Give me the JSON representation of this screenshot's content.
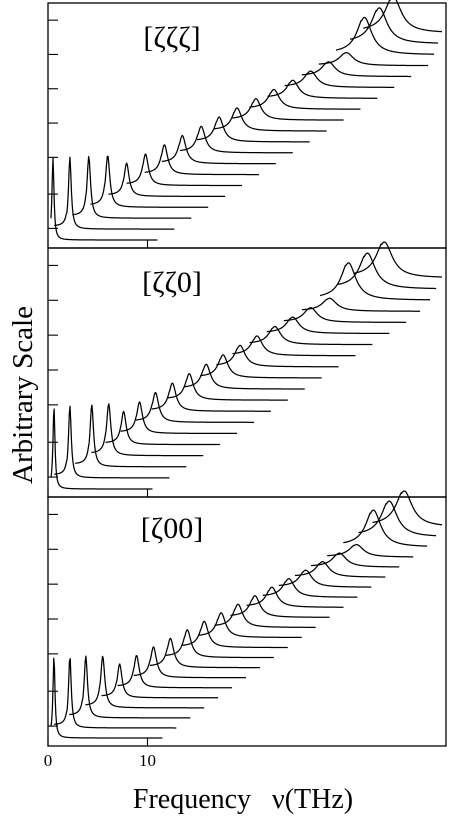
{
  "chart_data": {
    "type": "line",
    "subtype": "stacked-spectra (waterfall), 3 vertically stacked panels sharing one frequency axis",
    "xlabel": "Frequency   ν(THz)",
    "ylabel": "Arbitrary Scale",
    "x_tick_labels": [
      "0",
      "10"
    ],
    "xlim": [
      0,
      40
    ],
    "grid": false,
    "legend": "none",
    "panels": [
      {
        "label": "[ζζζ]",
        "n_traces": 20,
        "peak_frequencies": [
          0.5,
          2.2,
          4.1,
          6.0,
          7.9,
          9.8,
          11.7,
          13.5,
          15.4,
          17.2,
          19.0,
          20.9,
          22.7,
          24.6,
          26.4,
          28.2,
          30.0,
          31.8,
          33.3,
          34.7
        ],
        "trace_end_frequencies": [
          11.0,
          12.7,
          14.4,
          16.1,
          17.8,
          19.5,
          21.2,
          22.9,
          24.6,
          26.3,
          28.0,
          29.7,
          31.4,
          33.1,
          34.8,
          36.5,
          38.2,
          38.8,
          39.2,
          39.6
        ]
      },
      {
        "label": "[ζζ0]",
        "n_traces": 20,
        "peak_frequencies": [
          0.6,
          2.2,
          4.4,
          6.1,
          7.6,
          9.2,
          10.8,
          12.5,
          14.2,
          15.9,
          17.6,
          19.3,
          21.0,
          22.8,
          24.6,
          26.4,
          28.3,
          30.2,
          32.1,
          33.8
        ],
        "trace_end_frequencies": [
          10.5,
          12.2,
          13.9,
          15.6,
          17.3,
          19.0,
          20.7,
          22.4,
          24.1,
          25.8,
          27.5,
          29.2,
          30.9,
          32.6,
          34.3,
          36.0,
          37.4,
          38.4,
          39.0,
          39.6
        ]
      },
      {
        "label": "[ζ00]",
        "n_traces": 22,
        "peak_frequencies": [
          0.6,
          2.2,
          3.8,
          5.5,
          7.2,
          8.9,
          10.6,
          12.3,
          14.0,
          15.7,
          17.4,
          19.1,
          20.8,
          22.5,
          24.2,
          25.9,
          27.6,
          29.3,
          31.0,
          32.7,
          34.3,
          35.8
        ],
        "trace_end_frequencies": [
          11.5,
          12.9,
          14.3,
          15.7,
          17.1,
          18.5,
          19.9,
          21.3,
          22.7,
          24.1,
          25.5,
          26.9,
          28.3,
          29.7,
          31.1,
          32.5,
          33.9,
          35.3,
          36.7,
          38.1,
          39.0,
          39.6
        ]
      }
    ]
  }
}
